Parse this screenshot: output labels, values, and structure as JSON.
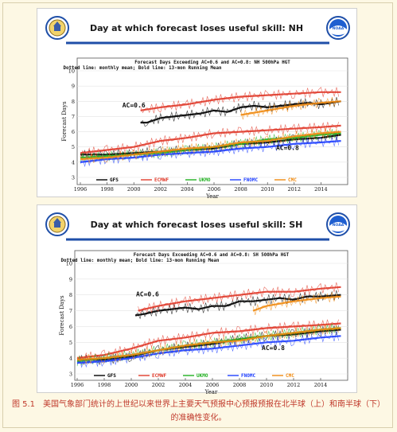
{
  "caption": "图 5.1　美国气象部门统计的上世纪以来世界上主要天气预报中心预报预报在北半球（上）和南半球（下）的准确性变化。",
  "logos": {
    "left": "noaa-commerce-seal-icon",
    "right": "noaa-logo-icon"
  },
  "colors": {
    "background": "#fdf8e4",
    "caption": "#c0392b",
    "header_rule": "#1f4fa8",
    "title": "#1a1a1a"
  },
  "legend": [
    {
      "label": "GFS",
      "color": "#000000"
    },
    {
      "label": "ECMWF",
      "color": "#e03a2a"
    },
    {
      "label": "UKMO",
      "color": "#20b020"
    },
    {
      "label": "FNOMC",
      "color": "#2040ff"
    },
    {
      "label": "CMC",
      "color": "#f08a10"
    }
  ],
  "chart_data": [
    {
      "type": "line",
      "header": "Day at which forecast loses useful skill: NH",
      "title": "Forecast Days Exceeding AC=0.6 and AC=0.8: NH 500hPa HGT",
      "subtitle": "Dotted line: monthly mean; Bold line: 13-mon Running Mean",
      "xlabel": "Year",
      "ylabel": "Forecast Days",
      "xlim": [
        1996,
        2016
      ],
      "ylim": [
        3,
        10
      ],
      "xticks": [
        "1996",
        "1998",
        "2000",
        "2002",
        "2004",
        "2006",
        "2008",
        "2010",
        "2012",
        "2014"
      ],
      "yticks": [
        "3",
        "4",
        "5",
        "6",
        "7",
        "8",
        "9",
        "10"
      ],
      "annotations": [
        {
          "text": "AC=0.6",
          "x": 2000.0,
          "y": 7.6
        },
        {
          "text": "AC=0.8",
          "x": 2011.5,
          "y": 4.8
        }
      ],
      "series": [
        {
          "name": "GFS",
          "group": "AC=0.6",
          "x": [
            2000.5,
            2001,
            2002,
            2003,
            2004,
            2005,
            2006,
            2007,
            2008,
            2009,
            2010,
            2011,
            2012,
            2013,
            2014,
            2015.5
          ],
          "y": [
            6.6,
            6.6,
            6.9,
            7.0,
            7.1,
            7.2,
            7.4,
            7.3,
            7.6,
            7.7,
            7.6,
            7.7,
            7.8,
            7.9,
            7.8,
            8.0
          ]
        },
        {
          "name": "ECMWF",
          "group": "AC=0.6",
          "x": [
            2000.5,
            2002,
            2004,
            2006,
            2008,
            2010,
            2012,
            2014,
            2015.5
          ],
          "y": [
            7.4,
            7.6,
            7.8,
            8.1,
            8.3,
            8.4,
            8.5,
            8.6,
            8.6
          ]
        },
        {
          "name": "CMC",
          "group": "AC=0.6",
          "x": [
            2008,
            2010,
            2012,
            2014,
            2015.5
          ],
          "y": [
            7.1,
            7.4,
            7.7,
            7.9,
            8.0
          ]
        },
        {
          "name": "GFS",
          "group": "AC=0.8",
          "x": [
            1996,
            1998,
            2000,
            2002,
            2004,
            2006,
            2008,
            2010,
            2012,
            2014,
            2015.5
          ],
          "y": [
            4.5,
            4.5,
            4.6,
            4.7,
            4.8,
            4.9,
            5.2,
            5.3,
            5.5,
            5.6,
            5.8
          ]
        },
        {
          "name": "ECMWF",
          "group": "AC=0.8",
          "x": [
            1996,
            1998,
            2000,
            2002,
            2004,
            2006,
            2008,
            2010,
            2012,
            2014,
            2015.5
          ],
          "y": [
            4.6,
            4.8,
            5.0,
            5.4,
            5.6,
            5.9,
            6.0,
            6.1,
            6.2,
            6.3,
            6.4
          ]
        },
        {
          "name": "UKMO",
          "group": "AC=0.8",
          "x": [
            1996,
            1998,
            2000,
            2002,
            2004,
            2006,
            2008,
            2010,
            2012,
            2014,
            2015.5
          ],
          "y": [
            4.3,
            4.4,
            4.5,
            4.6,
            4.8,
            5.0,
            5.2,
            5.5,
            5.6,
            5.8,
            5.9
          ]
        },
        {
          "name": "FNOMC",
          "group": "AC=0.8",
          "x": [
            1996,
            1998,
            2000,
            2002,
            2004,
            2006,
            2008,
            2010,
            2012,
            2014,
            2015.5
          ],
          "y": [
            4.0,
            4.2,
            4.3,
            4.5,
            4.6,
            4.7,
            4.9,
            5.0,
            5.2,
            5.3,
            5.4
          ]
        },
        {
          "name": "CMC",
          "group": "AC=0.8",
          "x": [
            1996,
            1998,
            2000,
            2002,
            2004,
            2006,
            2008,
            2010,
            2012,
            2014,
            2015.5
          ],
          "y": [
            4.2,
            4.3,
            4.5,
            4.7,
            4.9,
            5.0,
            5.3,
            5.4,
            5.7,
            5.9,
            6.0
          ]
        }
      ]
    },
    {
      "type": "line",
      "header": "Day at which forecast loses useful skill: SH",
      "title": "Forecast Days Exceeding AC=0.6 and AC=0.8: SH 500hPa HGT",
      "subtitle": "Dotted line: monthly mean; Bold line: 13-mon Running Mean",
      "xlabel": "Year",
      "ylabel": "Forecast Days",
      "xlim": [
        1996,
        2016
      ],
      "ylim": [
        3,
        10
      ],
      "xticks": [
        "1996",
        "1998",
        "2000",
        "2002",
        "2004",
        "2006",
        "2008",
        "2010",
        "2012",
        "2014"
      ],
      "yticks": [
        "3",
        "4",
        "5",
        "6",
        "7",
        "8",
        "9",
        "10"
      ],
      "annotations": [
        {
          "text": "AC=0.6",
          "x": 2001.2,
          "y": 7.9
        },
        {
          "text": "AC=0.8",
          "x": 2010.5,
          "y": 4.5
        }
      ],
      "series": [
        {
          "name": "GFS",
          "group": "AC=0.6",
          "x": [
            2000.3,
            2001,
            2002,
            2003,
            2004,
            2005,
            2006,
            2007,
            2008,
            2009,
            2010,
            2011,
            2012,
            2013,
            2014,
            2015.5
          ],
          "y": [
            6.7,
            6.8,
            7.0,
            7.1,
            7.2,
            7.1,
            7.3,
            7.3,
            7.6,
            7.6,
            7.7,
            7.8,
            7.7,
            7.9,
            7.9,
            8.0
          ]
        },
        {
          "name": "ECMWF",
          "group": "AC=0.6",
          "x": [
            2000.5,
            2002,
            2004,
            2006,
            2008,
            2010,
            2012,
            2014,
            2015.5
          ],
          "y": [
            7.0,
            7.3,
            7.6,
            7.8,
            8.0,
            8.2,
            8.2,
            8.4,
            8.5
          ]
        },
        {
          "name": "CMC",
          "group": "AC=0.6",
          "x": [
            2009,
            2010,
            2012,
            2014,
            2015.5
          ],
          "y": [
            7.0,
            7.3,
            7.6,
            7.8,
            7.9
          ]
        },
        {
          "name": "GFS",
          "group": "AC=0.8",
          "x": [
            1996,
            1998,
            2000,
            2002,
            2004,
            2006,
            2008,
            2010,
            2012,
            2014,
            2015.5
          ],
          "y": [
            3.9,
            3.9,
            4.1,
            4.5,
            4.7,
            4.9,
            5.2,
            5.4,
            5.5,
            5.7,
            5.8
          ]
        },
        {
          "name": "ECMWF",
          "group": "AC=0.8",
          "x": [
            1996,
            1998,
            2000,
            2002,
            2004,
            2006,
            2008,
            2010,
            2012,
            2014,
            2015.5
          ],
          "y": [
            4.0,
            4.2,
            4.6,
            5.1,
            5.3,
            5.6,
            5.7,
            5.9,
            6.0,
            6.1,
            6.2
          ]
        },
        {
          "name": "UKMO",
          "group": "AC=0.8",
          "x": [
            1996,
            1998,
            2000,
            2002,
            2004,
            2006,
            2008,
            2010,
            2012,
            2014,
            2015.5
          ],
          "y": [
            3.8,
            4.0,
            4.2,
            4.5,
            4.8,
            5.0,
            5.2,
            5.4,
            5.6,
            5.8,
            5.9
          ]
        },
        {
          "name": "FNOMC",
          "group": "AC=0.8",
          "x": [
            1996,
            1998,
            2000,
            2002,
            2004,
            2006,
            2008,
            2010,
            2012,
            2014,
            2015.5
          ],
          "y": [
            3.7,
            3.8,
            4.0,
            4.3,
            4.5,
            4.6,
            4.8,
            5.0,
            5.1,
            5.3,
            5.4
          ]
        },
        {
          "name": "CMC",
          "group": "AC=0.8",
          "x": [
            1996,
            1998,
            2000,
            2002,
            2004,
            2006,
            2008,
            2010,
            2012,
            2014,
            2015.5
          ],
          "y": [
            3.9,
            4.0,
            4.2,
            4.5,
            4.8,
            5.0,
            5.1,
            5.4,
            5.6,
            5.8,
            5.9
          ]
        }
      ]
    }
  ]
}
